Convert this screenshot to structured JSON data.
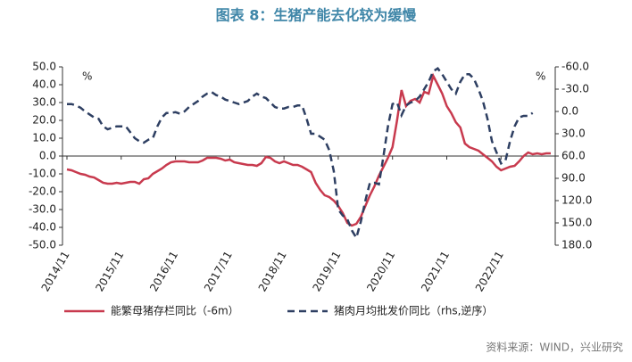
{
  "chart_data": {
    "type": "line",
    "title": "图表 8：生猪产能去化较为缓慢",
    "source": "资料来源：WIND，兴业研究",
    "y_unit": "%",
    "y2_unit": "%",
    "categories": [
      "2014/11",
      null,
      null,
      null,
      null,
      null,
      null,
      null,
      null,
      null,
      null,
      null,
      "2015/11",
      null,
      null,
      null,
      null,
      null,
      null,
      null,
      null,
      null,
      null,
      null,
      "2016/11",
      null,
      null,
      null,
      null,
      null,
      null,
      null,
      null,
      null,
      null,
      null,
      "2017/11",
      null,
      null,
      null,
      null,
      null,
      null,
      null,
      null,
      null,
      null,
      null,
      "2018/11",
      null,
      null,
      null,
      null,
      null,
      null,
      null,
      null,
      null,
      null,
      null,
      "2019/11",
      null,
      null,
      null,
      null,
      null,
      null,
      null,
      null,
      null,
      null,
      null,
      "2020/11",
      null,
      null,
      null,
      null,
      null,
      null,
      null,
      null,
      null,
      null,
      null,
      "2021/11",
      null,
      null,
      null,
      null,
      null,
      null,
      null,
      null,
      null,
      null,
      null,
      "2022/11",
      null,
      null,
      null,
      null,
      null,
      null,
      null,
      null,
      null,
      null,
      null
    ],
    "series": [
      {
        "name": "能繁母猪存栏同比（-6m）",
        "color": "#c83a4e",
        "dashed": false,
        "values": [
          -7.5,
          -8,
          -9,
          -10,
          -10.5,
          -11.5,
          -12,
          -13.5,
          -15,
          -15.5,
          -15.5,
          -15,
          -15.5,
          -15,
          -14.5,
          -14.5,
          -15.5,
          -13,
          -12.5,
          -10,
          -8.5,
          -7,
          -5,
          -3.5,
          -3,
          -3,
          -3,
          -3.5,
          -3.5,
          -3.5,
          -2.5,
          -1,
          -1,
          -1,
          -1.5,
          -2.5,
          -2,
          -3.5,
          -4,
          -4.5,
          -5,
          -5,
          -5.5,
          -4,
          -0.5,
          -1,
          -3,
          -4,
          -3,
          -4,
          -5,
          -5,
          -6,
          -7.5,
          -9,
          -15,
          -19,
          -22,
          -23,
          -25,
          -28,
          -32,
          -37.5,
          -39,
          -38,
          -34,
          -28,
          -22,
          -17,
          -11,
          -6,
          -1,
          5,
          20,
          37,
          28,
          31,
          32,
          30,
          36,
          35,
          45,
          40,
          35,
          28,
          24,
          19,
          16,
          7,
          5,
          4,
          3,
          1,
          -1,
          -3,
          -6,
          -8,
          -7,
          -6,
          -5.5,
          -3,
          0,
          2,
          1,
          1.5,
          1,
          1.5,
          1.5
        ]
      },
      {
        "name": "猪肉月均批发价同比（rhs,逆序）",
        "color": "#2e3f62",
        "dashed": true,
        "axis": "y2",
        "values": [
          -10,
          -10,
          -8,
          -5,
          0,
          4,
          8,
          10,
          20,
          24,
          22,
          20,
          20,
          20,
          28,
          36,
          40,
          42,
          38,
          36,
          20,
          8,
          2,
          2,
          1,
          3,
          0,
          -6,
          -10,
          -14,
          -20,
          -24,
          -26,
          -22,
          -20,
          -16,
          -14,
          -12,
          -10,
          -12,
          -14,
          -20,
          -24,
          -20,
          -18,
          -12,
          -6,
          -4,
          -4,
          -6,
          -6,
          -8,
          -8,
          10,
          30,
          30,
          34,
          38,
          52,
          80,
          132,
          140,
          145,
          160,
          170,
          148,
          120,
          96,
          96,
          98,
          60,
          20,
          -10,
          -12,
          5,
          -8,
          -12,
          -14,
          -20,
          -30,
          -40,
          -54,
          -58,
          -50,
          -40,
          -30,
          -24,
          -40,
          -50,
          -50,
          -44,
          -30,
          -14,
          10,
          40,
          55,
          70,
          66,
          40,
          20,
          8,
          6,
          6,
          2,
          null,
          null,
          null,
          null
        ]
      }
    ],
    "ylim": [
      -50,
      50
    ],
    "yticks": [
      {
        "value": 50,
        "label": "50.0"
      },
      {
        "value": 40,
        "label": "40.0"
      },
      {
        "value": 30,
        "label": "30.0"
      },
      {
        "value": 20,
        "label": "20.0"
      },
      {
        "value": 10,
        "label": "10.0"
      },
      {
        "value": 0,
        "label": "0.0"
      },
      {
        "value": -10,
        "label": "-10.0"
      },
      {
        "value": -20,
        "label": "-20.0"
      },
      {
        "value": -30,
        "label": "-30.0"
      },
      {
        "value": -40,
        "label": "-40.0"
      },
      {
        "value": -50,
        "label": "-50.0"
      }
    ],
    "y2lim": [
      -60,
      180
    ],
    "y2_inverted": true,
    "y2ticks": [
      {
        "value": -60,
        "label": "-60.0"
      },
      {
        "value": -30,
        "label": "-30.0"
      },
      {
        "value": 0,
        "label": "0.0"
      },
      {
        "value": 30,
        "label": "30.0"
      },
      {
        "value": 60,
        "label": "60.0"
      },
      {
        "value": 90,
        "label": "90.0"
      },
      {
        "value": 120,
        "label": "120.0"
      },
      {
        "value": 150,
        "label": "150.0"
      },
      {
        "value": 180,
        "label": "180.0"
      }
    ],
    "legend": "bottom",
    "grid": false
  }
}
